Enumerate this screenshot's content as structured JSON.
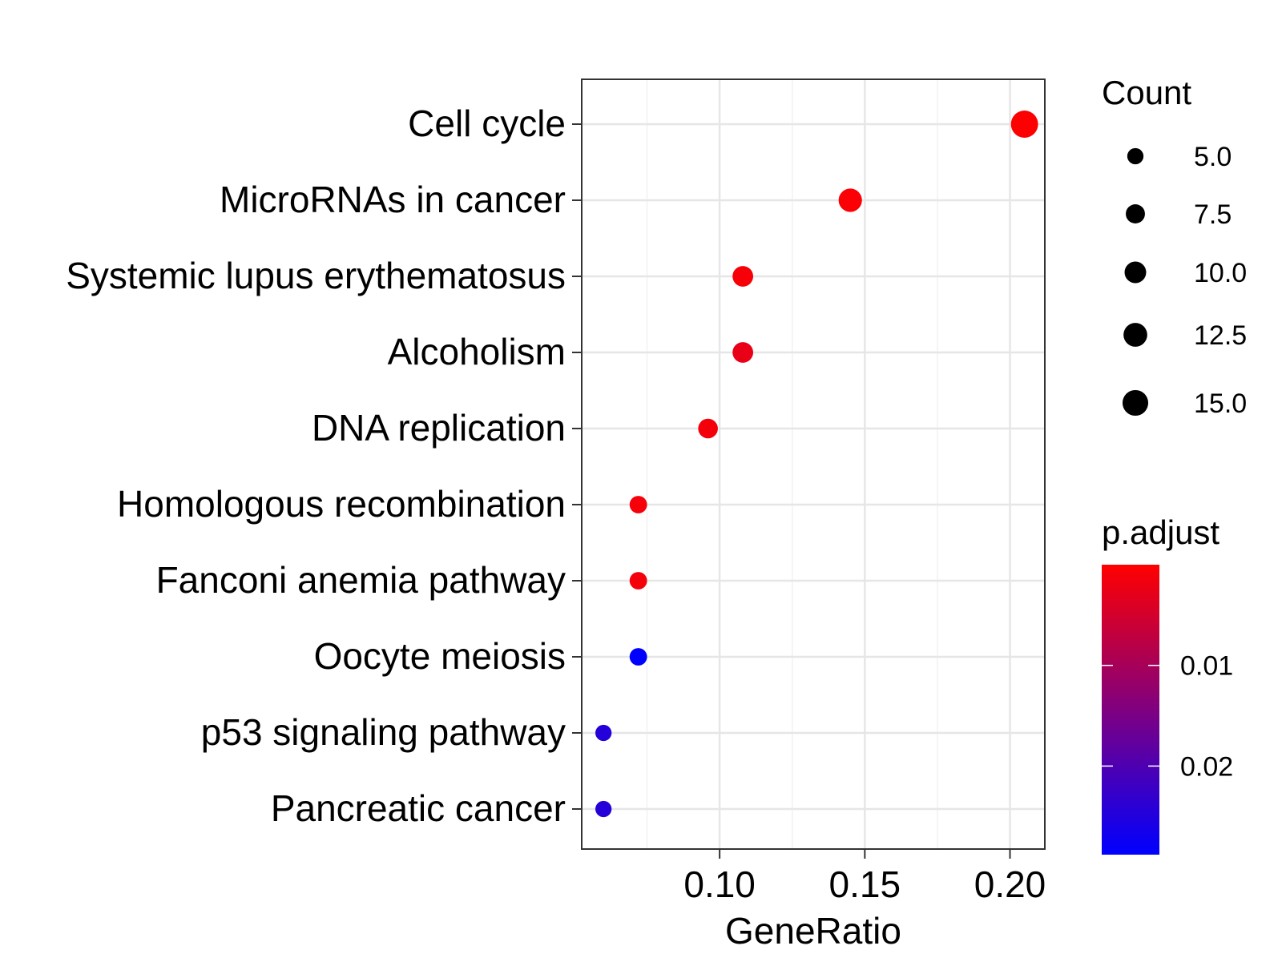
{
  "chart_data": {
    "type": "scatter",
    "xlabel": "GeneRatio",
    "ylabel": "",
    "xlim": [
      0.0525,
      0.212
    ],
    "x_ticks": [
      0.1,
      0.15,
      0.2
    ],
    "x_tick_labels": [
      "0.10",
      "0.15",
      "0.20"
    ],
    "grid": true,
    "categories": [
      "Cell cycle",
      "MicroRNAs in cancer",
      "Systemic lupus erythematosus",
      "Alcoholism",
      "DNA replication",
      "Homologous recombination",
      "Fanconi anemia pathway",
      "Oocyte meiosis",
      "p53 signaling pathway",
      "Pancreatic cancer"
    ],
    "points": [
      {
        "term": "Cell cycle",
        "gene_ratio": 0.205,
        "count": 17,
        "p_adjust": 0.0002
      },
      {
        "term": "MicroRNAs in cancer",
        "gene_ratio": 0.145,
        "count": 12,
        "p_adjust": 0.0005
      },
      {
        "term": "Systemic lupus erythematosus",
        "gene_ratio": 0.108,
        "count": 9,
        "p_adjust": 0.0009
      },
      {
        "term": "Alcoholism",
        "gene_ratio": 0.108,
        "count": 9,
        "p_adjust": 0.0025
      },
      {
        "term": "DNA replication",
        "gene_ratio": 0.096,
        "count": 8,
        "p_adjust": 0.0012
      },
      {
        "term": "Homologous recombination",
        "gene_ratio": 0.072,
        "count": 6,
        "p_adjust": 0.001
      },
      {
        "term": "Fanconi anemia pathway",
        "gene_ratio": 0.072,
        "count": 6,
        "p_adjust": 0.0011
      },
      {
        "term": "Oocyte meiosis",
        "gene_ratio": 0.072,
        "count": 6,
        "p_adjust": 0.0288
      },
      {
        "term": "p53 signaling pathway",
        "gene_ratio": 0.06,
        "count": 5,
        "p_adjust": 0.0245
      },
      {
        "term": "Pancreatic cancer",
        "gene_ratio": 0.06,
        "count": 5,
        "p_adjust": 0.0245
      }
    ],
    "size_legend": {
      "title": "Count",
      "values": [
        5.0,
        7.5,
        10.0,
        12.5,
        15.0
      ],
      "labels": [
        "5.0",
        "7.5",
        "10.0",
        "12.5",
        "15.0"
      ]
    },
    "color_legend": {
      "title": "p.adjust",
      "range": [
        0.0,
        0.0288
      ],
      "ticks": [
        0.01,
        0.02
      ],
      "tick_labels": [
        "0.01",
        "0.02"
      ],
      "low_color": "#ff0000",
      "high_color": "#0000ff"
    }
  }
}
